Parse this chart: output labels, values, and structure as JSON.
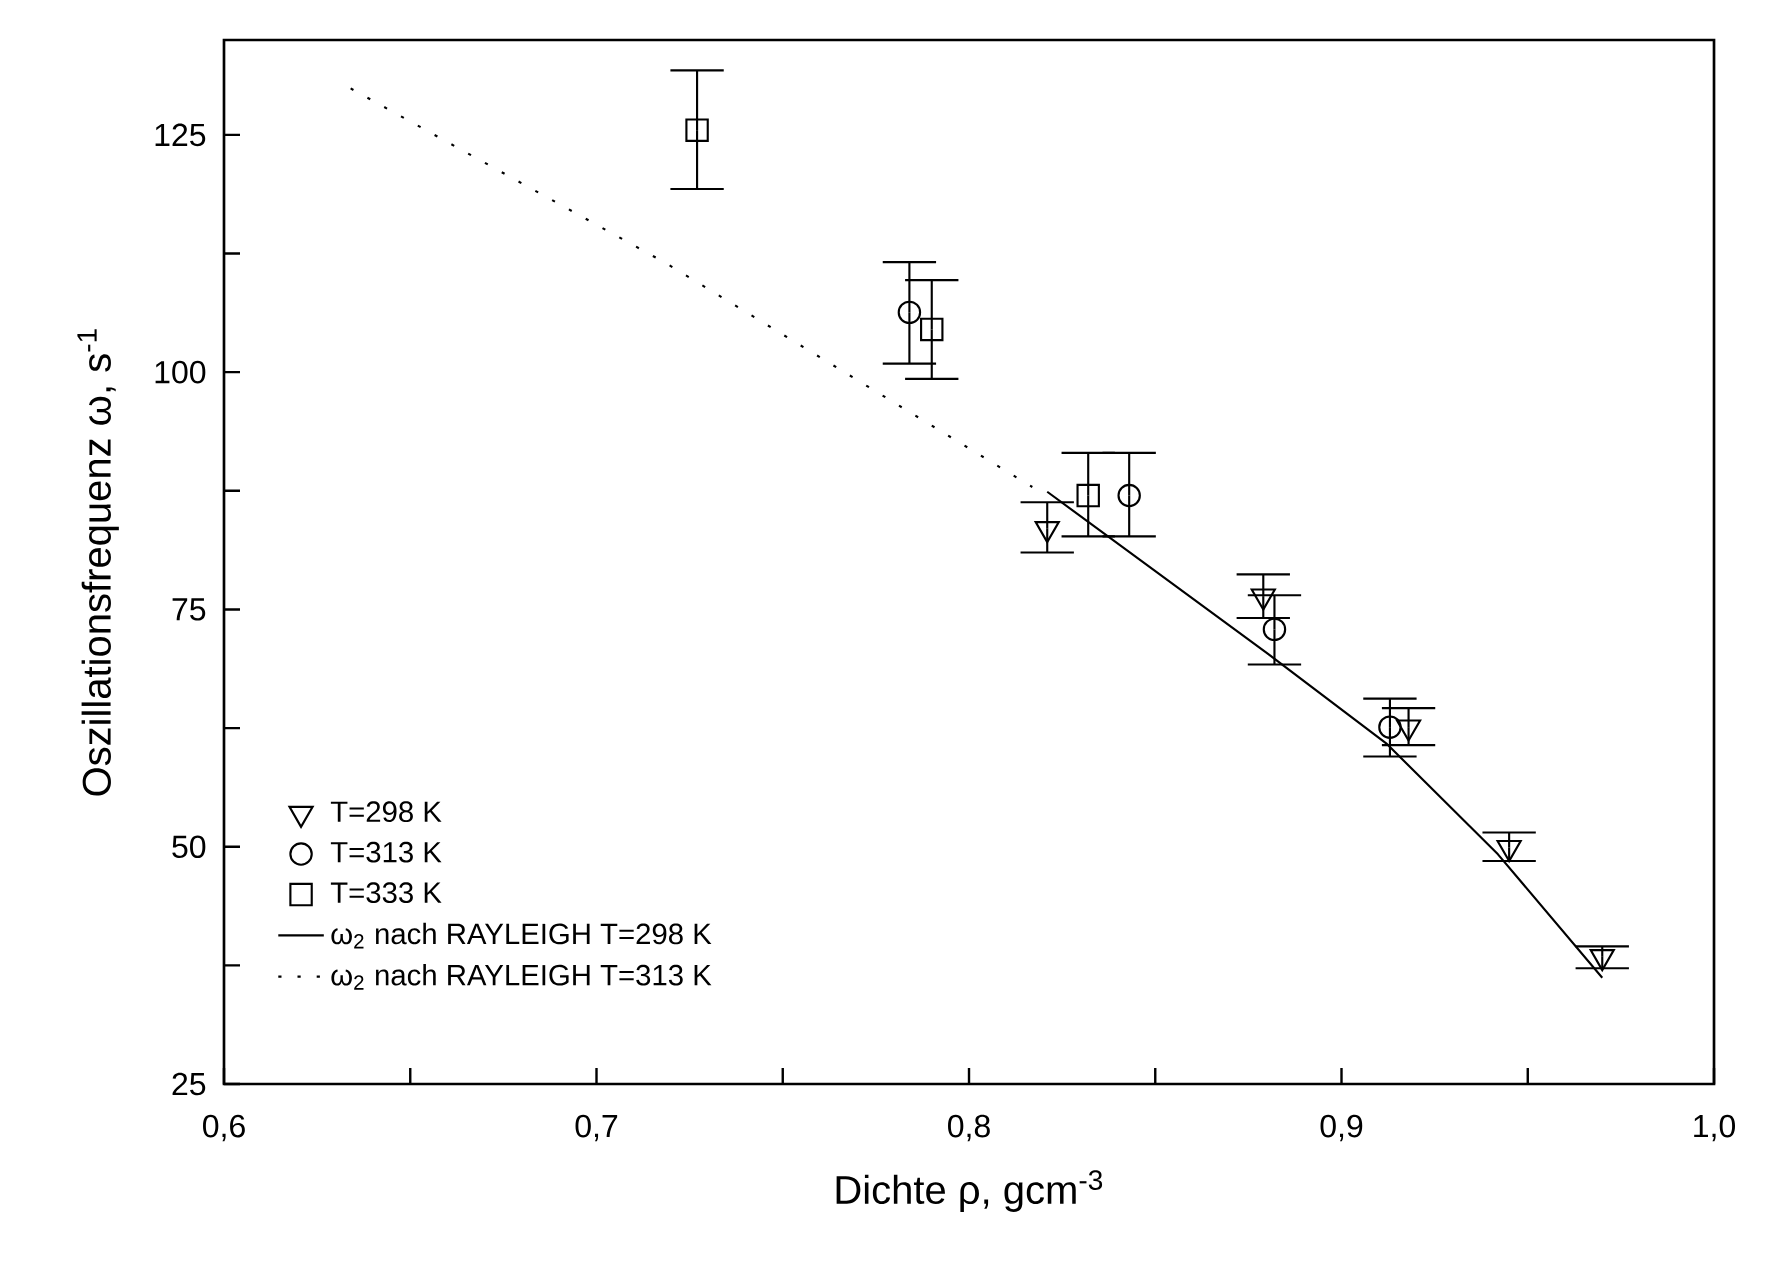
{
  "chart_data": {
    "type": "scatter",
    "xlabel": "Dichte ρ, gcm$^{-3}$",
    "ylabel": "Oszillationsfrequenz ω, s$^{-1}$",
    "xlim": [
      0.6,
      1.0
    ],
    "ylim": [
      25,
      135
    ],
    "xticks": [
      {
        "value": 0.6,
        "label": "0,6"
      },
      {
        "value": 0.65,
        "label": null
      },
      {
        "value": 0.7,
        "label": "0,7"
      },
      {
        "value": 0.75,
        "label": null
      },
      {
        "value": 0.8,
        "label": "0,8"
      },
      {
        "value": 0.85,
        "label": null
      },
      {
        "value": 0.9,
        "label": "0,9"
      },
      {
        "value": 0.95,
        "label": null
      },
      {
        "value": 1.0,
        "label": "1,0"
      }
    ],
    "yticks": [
      25,
      {
        "value": 37.5,
        "label": null
      },
      50,
      {
        "value": 62.5,
        "label": null
      },
      75,
      {
        "value": 87.5,
        "label": null
      },
      100,
      {
        "value": 112.5,
        "label": null
      },
      125
    ],
    "grid": false,
    "legend": "bottom left",
    "series": [
      {
        "name": "T=298 K",
        "marker": "triangle",
        "color": "#000000",
        "x": [
          0.821,
          0.879,
          0.918,
          0.945,
          0.97
        ],
        "values": [
          83.5,
          76.4,
          62.6,
          49.9,
          38.4
        ],
        "errors": [
          [
            81.0,
            86.3
          ],
          [
            74.1,
            78.7
          ],
          [
            60.7,
            64.6
          ],
          [
            48.5,
            51.5
          ],
          [
            37.2,
            39.5
          ]
        ]
      },
      {
        "name": "T=313 K",
        "marker": "circle",
        "color": "#000000",
        "x": [
          0.784,
          0.843,
          0.882,
          0.913
        ],
        "values": [
          106.3,
          87.0,
          72.9,
          62.6
        ],
        "errors": [
          [
            100.9,
            111.6
          ],
          [
            82.7,
            91.5
          ],
          [
            69.2,
            76.5
          ],
          [
            59.5,
            65.6
          ]
        ]
      },
      {
        "name": "T=333 K",
        "marker": "square",
        "color": "#000000",
        "x": [
          0.727,
          0.79,
          0.832
        ],
        "values": [
          125.5,
          104.5,
          87.0
        ],
        "errors": [
          [
            119.3,
            131.8
          ],
          [
            99.3,
            109.7
          ],
          [
            82.7,
            91.5
          ]
        ]
      },
      {
        "name": "ω$_{2}$ nach RAYLEIGH T=298 K",
        "type": "line",
        "line_style": "solid",
        "color": "#000000",
        "x": [
          0.821,
          0.88,
          0.912,
          0.942,
          0.97
        ],
        "values": [
          87.4,
          70.4,
          60.9,
          49.2,
          36.2
        ]
      },
      {
        "name": "ω$_{2}$ nach RAYLEIGH T=313 K",
        "type": "line",
        "line_style": "dotted",
        "color": "#000000",
        "x": [
          0.634,
          0.719,
          0.817
        ],
        "values": [
          129.9,
          111.4,
          87.9
        ]
      }
    ]
  }
}
